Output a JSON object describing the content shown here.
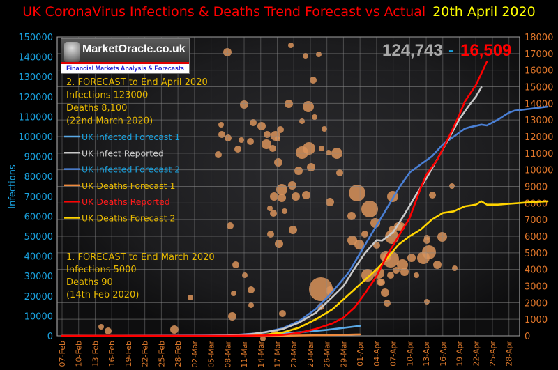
{
  "title": {
    "main": "UK CoronaVirus Infections & Deaths Trend Forecast vs Actual",
    "date": "20th April 2020"
  },
  "logo": {
    "brand": "MarketOracle.co.uk",
    "tagline": "Financial Markets Analysis & Forecasts"
  },
  "headline": {
    "infections": "124,743",
    "separator": "-",
    "deaths": "16,509"
  },
  "forecast_notes": {
    "forecast2": [
      "2. FORECAST to End April 2020",
      "Infections  123000",
      "Deaths 8,100",
      "(22nd March 2020)"
    ],
    "forecast1": [
      "1. FORECAST to End March 2020",
      "Infections  5000",
      "Deaths 90",
      "(14th Feb 2020)"
    ]
  },
  "colors": {
    "infected_forecast_1": "#5aa9e6",
    "infect_reported": "#c8c8c8",
    "infected_forecast_2": "#4a7fd4",
    "deaths_forecast_1": "#f08a3c",
    "deaths_reported": "#ff0000",
    "deaths_forecast_2": "#ffd400",
    "left_axis": "#1aa3e0",
    "right_axis": "#e0762a",
    "title": "#ff0000",
    "date": "#ffff00"
  },
  "chart_data": {
    "type": "line",
    "title": "UK CoronaVirus Infections & Deaths Trend Forecast vs Actual  20th April 2020",
    "xlabel": "",
    "ylabel": "Infections",
    "ylabel_right": "",
    "ylim": [
      0,
      150000
    ],
    "ylim_right": [
      0,
      18000
    ],
    "yticks": [
      0,
      10000,
      20000,
      30000,
      40000,
      50000,
      60000,
      70000,
      80000,
      90000,
      100000,
      110000,
      120000,
      130000,
      140000,
      150000
    ],
    "yticks_right": [
      0,
      1000,
      2000,
      3000,
      4000,
      5000,
      6000,
      7000,
      8000,
      9000,
      10000,
      11000,
      12000,
      13000,
      14000,
      15000,
      16000,
      17000,
      18000
    ],
    "x_tick_labels": [
      "07-Feb",
      "10-Feb",
      "13-Feb",
      "16-Feb",
      "19-Feb",
      "22-Feb",
      "25-Feb",
      "28-Feb",
      "02-Mar",
      "05-Mar",
      "08-Mar",
      "11-Mar",
      "14-Mar",
      "17-Mar",
      "20-Mar",
      "23-Mar",
      "26-Mar",
      "29-Mar",
      "01-Apr",
      "04-Apr",
      "07-Apr",
      "10-Apr",
      "13-Apr",
      "16-Apr",
      "19-Apr",
      "22-Apr",
      "25-Apr",
      "28-Apr"
    ],
    "x_start": "07-Feb",
    "x_days_total": 81,
    "grid": true,
    "legend_position": "left",
    "series": [
      {
        "name": "UK Infected Forecast 1",
        "axis": "left",
        "key": "infected_forecast_1",
        "points": [
          [
            0,
            0
          ],
          [
            20,
            30
          ],
          [
            30,
            200
          ],
          [
            36,
            600
          ],
          [
            40,
            1200
          ],
          [
            44,
            2000
          ],
          [
            48,
            3000
          ],
          [
            51,
            4000
          ],
          [
            54,
            5000
          ]
        ]
      },
      {
        "name": "UK Infect Reported",
        "axis": "left",
        "key": "infect_reported",
        "points": [
          [
            0,
            0
          ],
          [
            20,
            20
          ],
          [
            25,
            50
          ],
          [
            30,
            200
          ],
          [
            34,
            800
          ],
          [
            37,
            1900
          ],
          [
            40,
            3400
          ],
          [
            43,
            6700
          ],
          [
            46,
            11600
          ],
          [
            49,
            19500
          ],
          [
            51,
            25000
          ],
          [
            53,
            33700
          ],
          [
            55,
            41900
          ],
          [
            57,
            48000
          ],
          [
            58,
            47800
          ],
          [
            60,
            52000
          ],
          [
            62,
            60700
          ],
          [
            64,
            70000
          ],
          [
            66,
            78900
          ],
          [
            68,
            88600
          ],
          [
            70,
            98500
          ],
          [
            72,
            108700
          ],
          [
            74,
            116500
          ],
          [
            75,
            120000
          ],
          [
            76,
            124743
          ]
        ]
      },
      {
        "name": "UK Infected Forecast 2",
        "axis": "left",
        "key": "infected_forecast_2",
        "points": [
          [
            0,
            0
          ],
          [
            30,
            200
          ],
          [
            36,
            1400
          ],
          [
            40,
            3800
          ],
          [
            43,
            7500
          ],
          [
            46,
            13500
          ],
          [
            49,
            22000
          ],
          [
            52,
            32000
          ],
          [
            55,
            46000
          ],
          [
            58,
            60000
          ],
          [
            61,
            74000
          ],
          [
            63,
            82000
          ],
          [
            65,
            86000
          ],
          [
            67,
            90000
          ],
          [
            69,
            96000
          ],
          [
            71,
            100000
          ],
          [
            73,
            104000
          ],
          [
            74,
            104800
          ],
          [
            76,
            106000
          ],
          [
            77,
            105600
          ],
          [
            79,
            108500
          ],
          [
            81,
            112000
          ],
          [
            82,
            113000
          ],
          [
            85,
            114000
          ],
          [
            88,
            115000
          ]
        ]
      },
      {
        "name": "UK Deaths Forecast 1",
        "axis": "right",
        "key": "deaths_forecast_1",
        "points": [
          [
            0,
            0
          ],
          [
            40,
            10
          ],
          [
            48,
            40
          ],
          [
            54,
            90
          ]
        ]
      },
      {
        "name": "UK Deaths Reported",
        "axis": "right",
        "key": "deaths_reported",
        "points": [
          [
            0,
            0
          ],
          [
            30,
            5
          ],
          [
            36,
            20
          ],
          [
            40,
            60
          ],
          [
            43,
            180
          ],
          [
            46,
            420
          ],
          [
            49,
            750
          ],
          [
            51,
            1100
          ],
          [
            53,
            1700
          ],
          [
            55,
            2600
          ],
          [
            57,
            3600
          ],
          [
            59,
            4900
          ],
          [
            61,
            6000
          ],
          [
            63,
            7100
          ],
          [
            65,
            8900
          ],
          [
            66,
            9700
          ],
          [
            68,
            10600
          ],
          [
            70,
            11900
          ],
          [
            72,
            13300
          ],
          [
            73,
            14100
          ],
          [
            75,
            15100
          ],
          [
            76,
            15800
          ],
          [
            77,
            16509
          ]
        ]
      },
      {
        "name": "UK Deaths Forecast 2",
        "axis": "right",
        "key": "deaths_forecast_2",
        "points": [
          [
            0,
            0
          ],
          [
            30,
            5
          ],
          [
            36,
            40
          ],
          [
            40,
            200
          ],
          [
            43,
            500
          ],
          [
            46,
            1000
          ],
          [
            49,
            1600
          ],
          [
            51,
            2200
          ],
          [
            53,
            2800
          ],
          [
            55,
            3400
          ],
          [
            57,
            4000
          ],
          [
            59,
            4700
          ],
          [
            61,
            5500
          ],
          [
            63,
            6000
          ],
          [
            65,
            6400
          ],
          [
            67,
            7000
          ],
          [
            69,
            7400
          ],
          [
            71,
            7500
          ],
          [
            73,
            7800
          ],
          [
            75,
            7900
          ],
          [
            76,
            8100
          ],
          [
            77,
            7900
          ],
          [
            79,
            7900
          ],
          [
            81,
            7950
          ],
          [
            83,
            8000
          ],
          [
            85,
            8050
          ],
          [
            88,
            8100
          ]
        ]
      }
    ]
  }
}
